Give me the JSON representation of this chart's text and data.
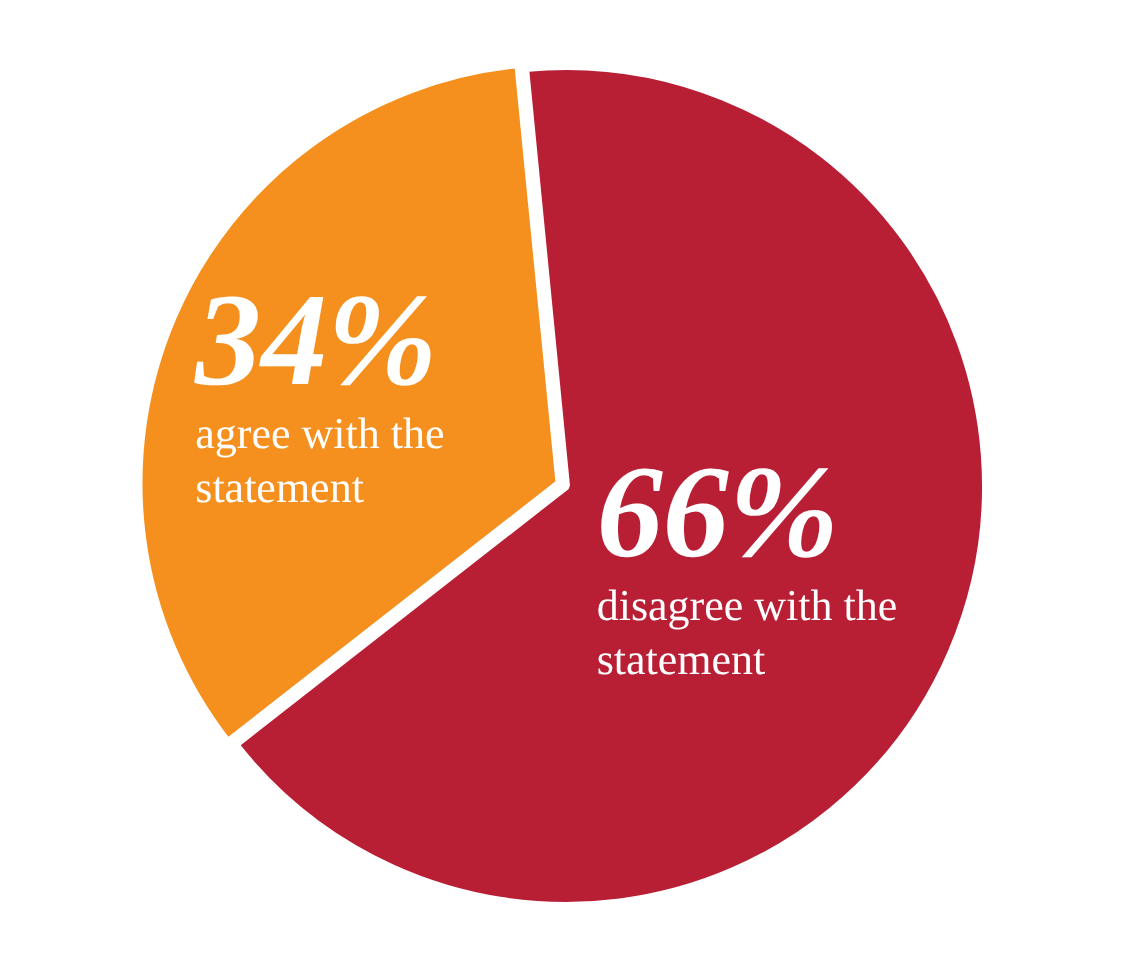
{
  "chart_data": {
    "type": "pie",
    "categories": [
      "agree with the statement",
      "disagree with the statement"
    ],
    "values": [
      34,
      66
    ],
    "colors": [
      "#f5901e",
      "#b81f35"
    ],
    "value_labels": [
      "34%",
      "66%"
    ],
    "legend": false
  }
}
